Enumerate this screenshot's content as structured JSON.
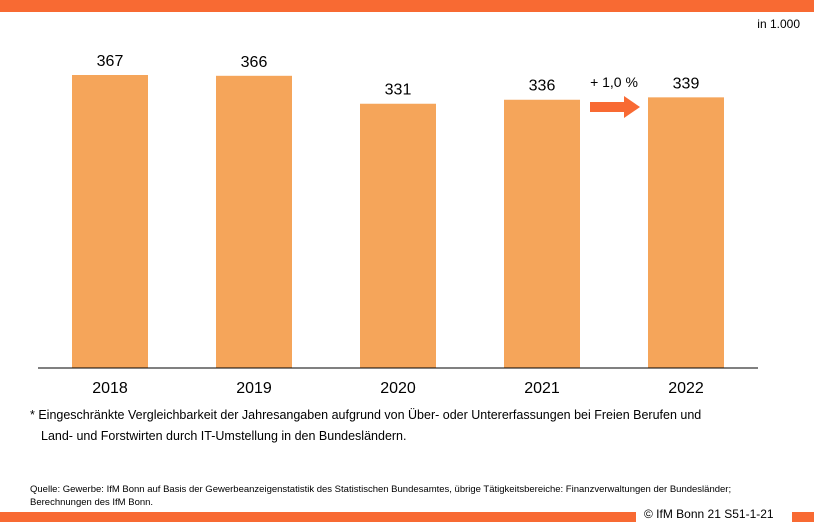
{
  "colors": {
    "accent": "#F86A33",
    "bar": "#F5A55A",
    "axis": "#000000",
    "text": "#000000"
  },
  "unit_label": "in 1.000",
  "chart_data": {
    "type": "bar",
    "categories": [
      "2018",
      "2019",
      "2020",
      "2021",
      "2022"
    ],
    "values": [
      367,
      366,
      331,
      336,
      339
    ],
    "data_labels": [
      "367",
      "366",
      "331",
      "336",
      "339"
    ],
    "ylim": [
      0,
      367
    ],
    "annotation": {
      "text": "+ 1,0 %",
      "from": "2021",
      "to": "2022",
      "arrow": "right-arrow-icon"
    },
    "title": "",
    "xlabel": "",
    "ylabel": ""
  },
  "footnote": {
    "line1": "* Eingeschränkte Vergleichbarkeit der Jahresangaben aufgrund von Über- oder Untererfassungen bei Freien Berufen und",
    "line2": "Land- und Forstwirten durch IT-Umstellung in den Bundesländern."
  },
  "source": "Quelle: Gewerbe: IfM Bonn auf Basis der Gewerbeanzeigenstatistik des Statistischen Bundesamtes, übrige Tätigkeitsbereiche: Finanzverwaltungen der Bundesländer; Berechnungen des IfM Bonn.",
  "copyright": "© IfM Bonn 21 S51-1-21"
}
